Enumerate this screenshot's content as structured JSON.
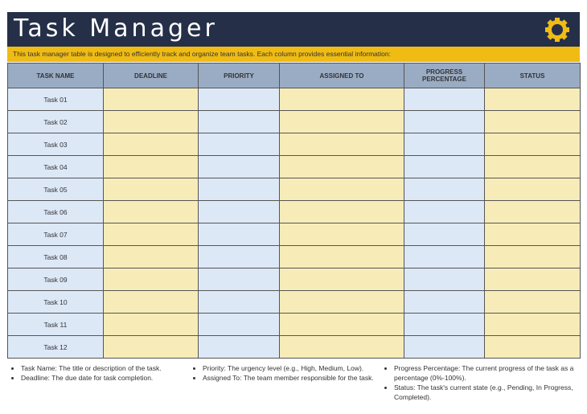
{
  "header": {
    "title": "Task Manager",
    "icon": "gear-icon",
    "subtitle": "This task manager table is designed to efficiently track and organize team tasks. Each column provides essential information:"
  },
  "colors": {
    "navy": "#252f48",
    "accent": "#f0bc14",
    "header": "#9aacc4",
    "blue_cell": "#dde8f7",
    "yellow_cell": "#f7ecb8"
  },
  "table": {
    "columns": [
      "TASK NAME",
      "DEADLINE",
      "PRIORITY",
      "ASSIGNED TO",
      "PROGRESS PERCENTAGE",
      "STATUS"
    ],
    "rows": [
      "Task 01",
      "Task 02",
      "Task 03",
      "Task 04",
      "Task 05",
      "Task 06",
      "Task 07",
      "Task 08",
      "Task 09",
      "Task 10",
      "Task 11",
      "Task 12"
    ]
  },
  "notes": [
    [
      "Task Name: The title or description of the task.",
      "Deadline: The due date for task completion."
    ],
    [
      "Priority: The urgency level (e.g., High, Medium, Low).",
      "Assigned To: The team member responsible for the task."
    ],
    [
      "Progress Percentage: The current progress of the task as a percentage (0%-100%).",
      "Status: The task's current state (e.g., Pending, In Progress, Completed)."
    ]
  ]
}
